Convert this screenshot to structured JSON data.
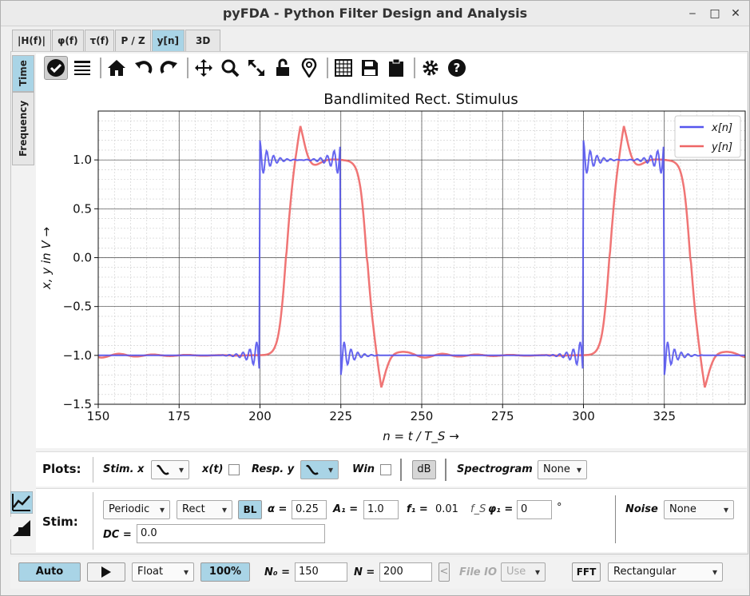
{
  "window": {
    "title": "pyFDA - Python Filter Design and Analysis"
  },
  "tabs": [
    "|H(f)|",
    "φ(f)",
    "τ(f)",
    "P / Z",
    "y[n]",
    "3D"
  ],
  "active_tab": "y[n]",
  "vtabs": [
    "Time",
    "Frequency"
  ],
  "toolbar_icons": [
    "check-circle-icon",
    "list-icon",
    "home-icon",
    "undo-icon",
    "redo-icon",
    "pan-icon",
    "zoom-icon",
    "fullscreen-icon",
    "lock-icon",
    "marker-icon",
    "grid-icon",
    "save-icon",
    "clipboard-icon",
    "settings-icon",
    "help-icon"
  ],
  "plot": {
    "title": "Bandlimited Rect. Stimulus",
    "ylabel": "x, y in V →",
    "xlabel": "n = t / T_S →",
    "legend_x": "x[n]",
    "legend_y": "y[n]"
  },
  "chart_data": {
    "type": "line",
    "title": "Bandlimited Rect. Stimulus",
    "xlabel": "n = t / T_S →",
    "ylabel": "x, y in V →",
    "xlim": [
      150,
      350
    ],
    "ylim": [
      -1.5,
      1.5
    ],
    "xticks": [
      150,
      175,
      200,
      225,
      250,
      275,
      300,
      325
    ],
    "yticks": [
      "1.0",
      "0.5",
      "0.0",
      "−0.5",
      "−1.0",
      "−1.5"
    ],
    "xticklabels": [
      "150",
      "175",
      "200",
      "225",
      "250",
      "275",
      "300",
      "325"
    ],
    "grid": true,
    "legend_position": "top-right",
    "series": [
      {
        "name": "x[n]",
        "color": "#5555ee",
        "description": "bandlimited rectangular pulse train, period 100, high from 200 to 225 and 300 to 325 with Gibbs ringing"
      },
      {
        "name": "y[n]",
        "color": "#ee6666",
        "description": "filtered response, delayed smooth pulses with overshoot ~1.35 and undershoot ~-1.37"
      }
    ]
  },
  "plots_row": {
    "label": "Plots:",
    "stim_x": "Stim. x",
    "xt": "x(t)",
    "resp_y": "Resp. y",
    "win": "Win",
    "db": "dB",
    "spectrogram": "Spectrogram",
    "spectrogram_value": "None"
  },
  "stim_row": {
    "label": "Stim:",
    "type": "Periodic",
    "shape": "Rect",
    "bl": "BL",
    "alpha_label": "α =",
    "alpha": "0.25",
    "a1_label": "A₁ =",
    "a1": "1.0",
    "f1_label": "f₁ =",
    "f1": "0.01",
    "fs": "f_S",
    "phi_label": "φ₁ =",
    "phi": "0",
    "deg": "°",
    "noise_label": "Noise",
    "noise": "None",
    "dc_label": "DC =",
    "dc": "0.0"
  },
  "bottom_row": {
    "auto": "Auto",
    "format": "Float",
    "percent": "100%",
    "n0_label": "N₀ =",
    "n0": "150",
    "n_label": "N =",
    "n": "200",
    "fileio": "File IO",
    "use": "Use",
    "fft": "FFT",
    "window": "Rectangular"
  }
}
